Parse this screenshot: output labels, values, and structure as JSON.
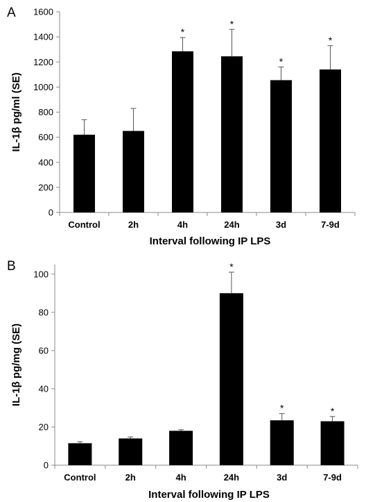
{
  "chart_data": [
    {
      "type": "bar",
      "panel_label": "A",
      "categories": [
        "Control",
        "2h",
        "4h",
        "24h",
        "3d",
        "7-9d"
      ],
      "values": [
        620,
        650,
        1285,
        1245,
        1055,
        1140
      ],
      "errors": [
        120,
        180,
        110,
        215,
        105,
        190
      ],
      "significance": [
        "",
        "",
        "*",
        "*",
        "*",
        "*"
      ],
      "xlabel": "Interval following IP LPS",
      "ylabel": "IL-1β pg/ml (SE)",
      "ylim": [
        0,
        1600
      ],
      "yticks": [
        0,
        200,
        400,
        600,
        800,
        1000,
        1200,
        1400,
        1600
      ],
      "bar_color": "#000000"
    },
    {
      "type": "bar",
      "panel_label": "B",
      "categories": [
        "Control",
        "2h",
        "4h",
        "24h",
        "3d",
        "7-9d"
      ],
      "values": [
        11.5,
        14,
        18,
        90,
        23.5,
        23
      ],
      "errors": [
        0.8,
        0.8,
        0.6,
        11,
        3.5,
        2.5
      ],
      "significance": [
        "",
        "",
        "",
        "*",
        "*",
        "*"
      ],
      "xlabel": "Interval following IP LPS",
      "ylabel": "IL-1β pg/mg (SE)",
      "ylim": [
        0,
        105
      ],
      "yticks": [
        0,
        20,
        40,
        60,
        80,
        100
      ],
      "bar_color": "#000000"
    }
  ]
}
